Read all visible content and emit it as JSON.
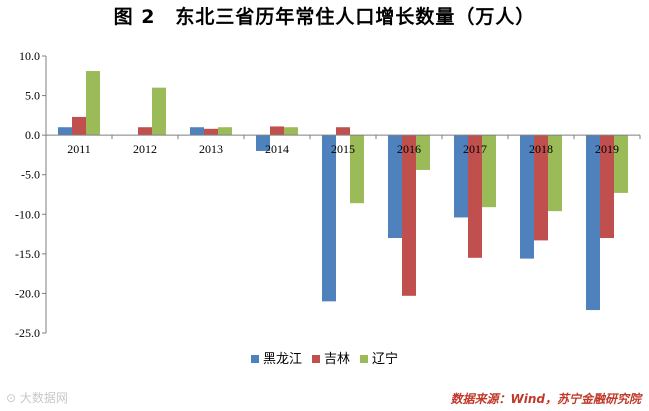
{
  "chart_data": {
    "type": "bar",
    "title": "图 2　东北三省历年常住人口增长数量（万人）",
    "categories": [
      "2011",
      "2012",
      "2013",
      "2014",
      "2015",
      "2016",
      "2017",
      "2018",
      "2019"
    ],
    "series": [
      {
        "name": "黑龙江",
        "color": "#4f81bd",
        "values": [
          1.0,
          0.0,
          1.0,
          -2.0,
          -21.0,
          -13.0,
          -10.4,
          -15.6,
          -22.1
        ]
      },
      {
        "name": "吉林",
        "color": "#c0504d",
        "values": [
          2.3,
          1.0,
          0.8,
          1.1,
          1.0,
          -20.3,
          -15.5,
          -13.3,
          -13.0
        ]
      },
      {
        "name": "辽宁",
        "color": "#9bbb59",
        "values": [
          8.1,
          6.0,
          1.0,
          1.0,
          -8.6,
          -4.4,
          -9.1,
          -9.6,
          -7.3
        ]
      }
    ],
    "ylim": [
      -25,
      10
    ],
    "yticks": [
      "10.0",
      "5.0",
      "0.0",
      "-5.0",
      "-10.0",
      "-15.0",
      "-20.0",
      "-25.0"
    ],
    "legend": "bottom",
    "grid": false
  },
  "source": "数据来源：Wind，苏宁金融研究院",
  "watermark": "大数据网"
}
